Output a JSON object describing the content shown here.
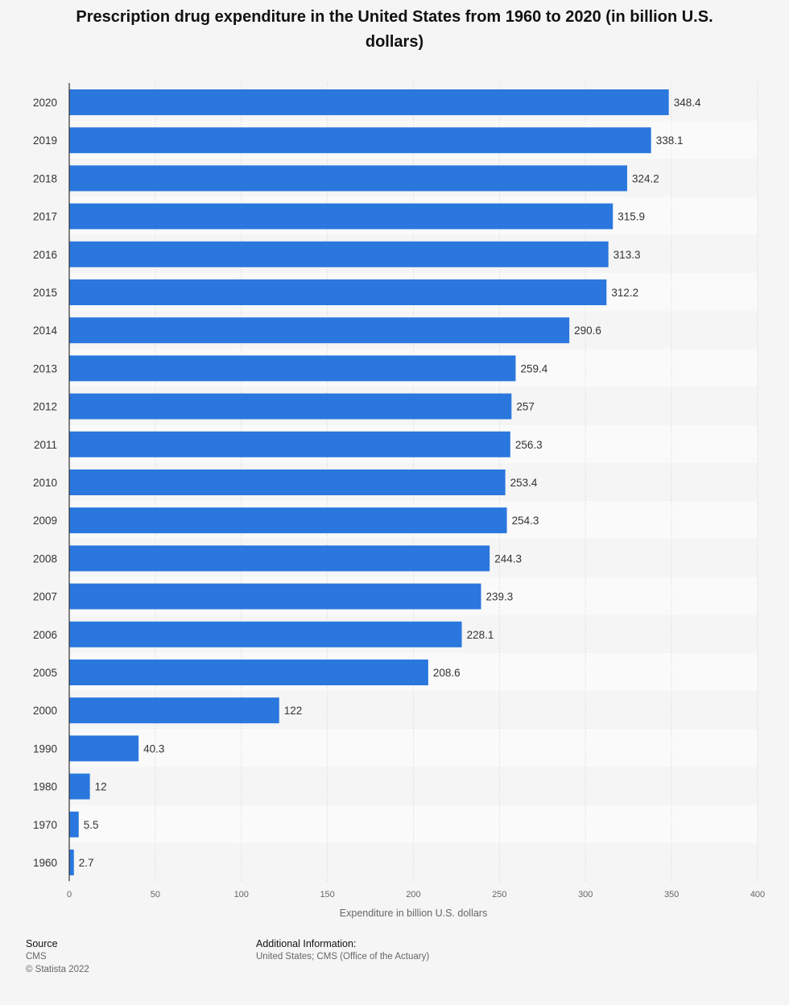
{
  "chart_data": {
    "type": "bar",
    "orientation": "horizontal",
    "title": "Prescription drug expenditure in the United States from 1960 to 2020 (in billion U.S. dollars)",
    "xlabel": "Expenditure in billion U.S. dollars",
    "ylabel": "",
    "xlim": [
      0,
      400
    ],
    "xticks": [
      0,
      50,
      100,
      150,
      200,
      250,
      300,
      350,
      400
    ],
    "categories": [
      "2020",
      "2019",
      "2018",
      "2017",
      "2016",
      "2015",
      "2014",
      "2013",
      "2012",
      "2011",
      "2010",
      "2009",
      "2008",
      "2007",
      "2006",
      "2005",
      "2000",
      "1990",
      "1980",
      "1970",
      "1960"
    ],
    "values": [
      348.4,
      338.1,
      324.2,
      315.9,
      313.3,
      312.2,
      290.6,
      259.4,
      257,
      256.3,
      253.4,
      254.3,
      244.3,
      239.3,
      228.1,
      208.6,
      122,
      40.3,
      12,
      5.5,
      2.7
    ],
    "bar_color": "#2a77de",
    "grid": true,
    "data_labels": true
  },
  "footer": {
    "source_title": "Source",
    "source_lines": [
      "CMS",
      "© Statista 2022"
    ],
    "info_title": "Additional Information:",
    "info_text": "United States; CMS (Office of the Actuary)"
  }
}
